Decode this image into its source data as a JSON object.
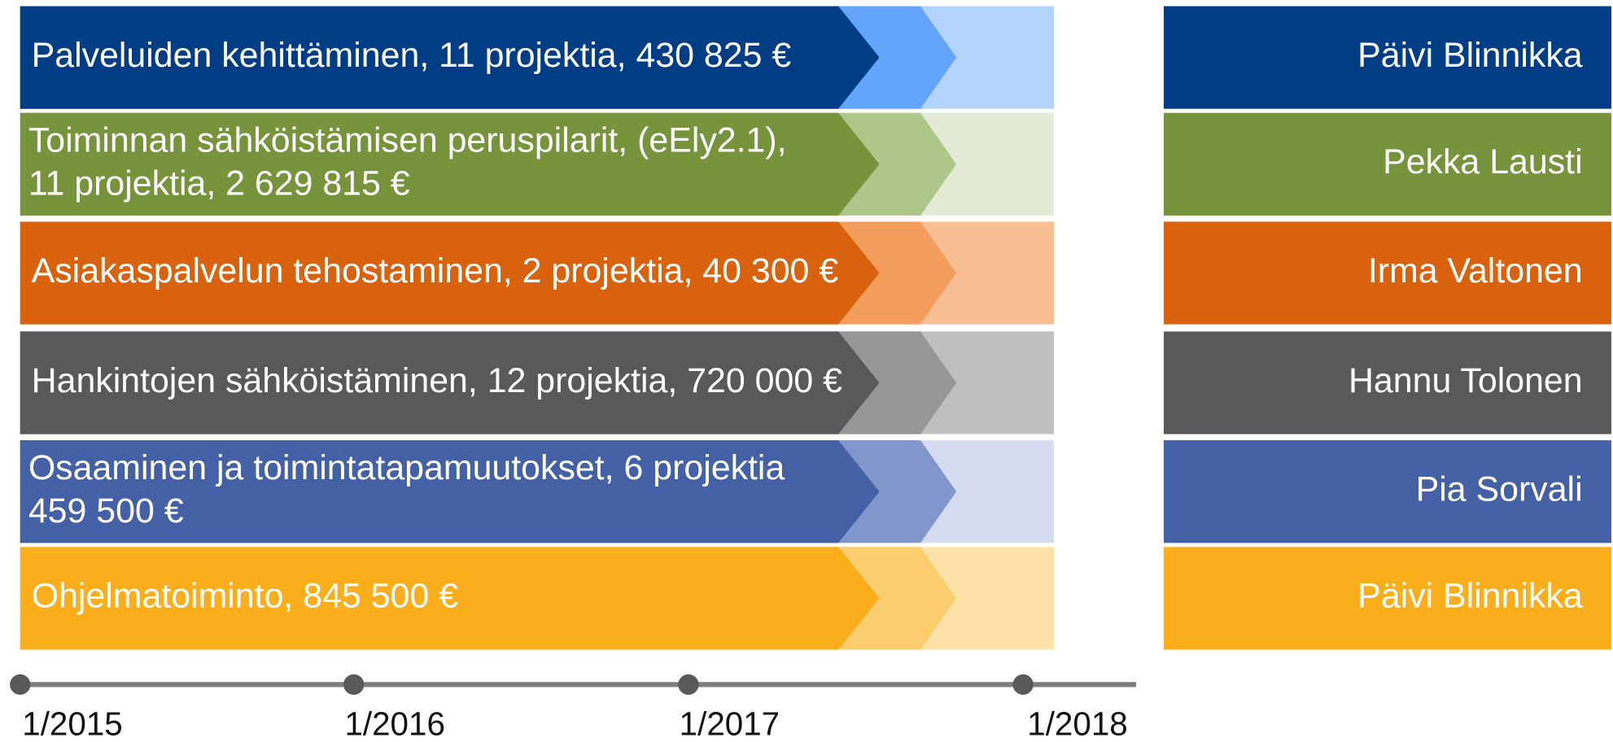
{
  "rows": [
    {
      "lines": [
        "Palveluiden kehittäminen, 11 projektia, 430 825 €"
      ],
      "owner": "Päivi Blinnikka",
      "colors": [
        "#003d85",
        "#63a5fb",
        "#b3d3fc"
      ]
    },
    {
      "lines": [
        "Toiminnan sähköistämisen peruspilarit, (eEly2.1),",
        "11 projektia, 2 629 815 €"
      ],
      "owner": "Pekka Lausti",
      "colors": [
        "#77933c",
        "#adc68a",
        "#e3ebd7"
      ]
    },
    {
      "lines": [
        "Asiakaspalvelun tehostaminen, 2 projektia, 40 300 €"
      ],
      "owner": "Irma Valtonen",
      "colors": [
        "#d9620f",
        "#f49e5e",
        "#f8bf95"
      ]
    },
    {
      "lines": [
        "Hankintojen sähköistäminen, 12 projektia, 720 000 €"
      ],
      "owner": "Hannu Tolonen",
      "colors": [
        "#595959",
        "#979797",
        "#bfbfbf"
      ]
    },
    {
      "lines": [
        "Osaaminen ja toimintatapamuutokset, 6 projektia",
        "459 500 €"
      ],
      "owner": "Pia Sorvali",
      "colors": [
        "#4361a4",
        "#8197cc",
        "#d6dcef"
      ]
    },
    {
      "lines": [
        "Ohjelmatoiminto,  845 500 €"
      ],
      "owner": "Päivi Blinnikka",
      "colors": [
        "#faae1b",
        "#fccd6e",
        "#fde2a8"
      ]
    }
  ],
  "timeline": [
    "1/2015",
    "1/2016",
    "1/2017",
    "1/2018"
  ]
}
